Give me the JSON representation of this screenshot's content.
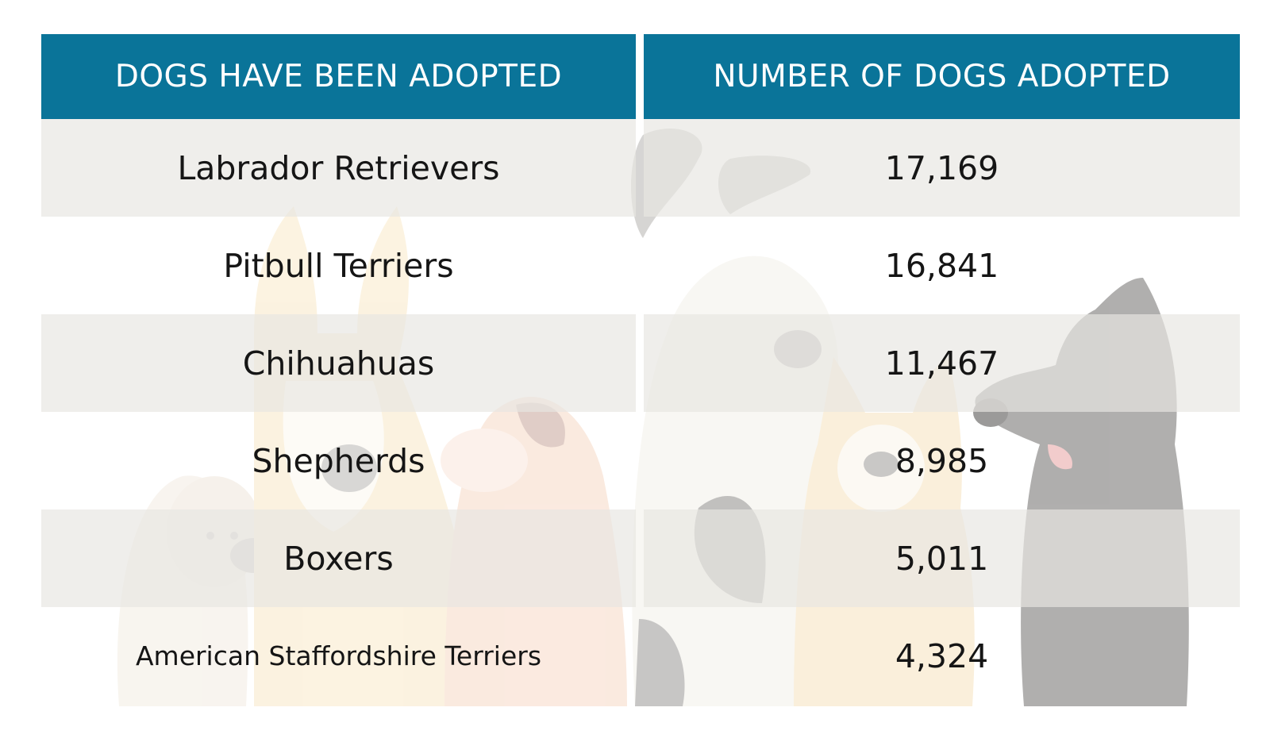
{
  "chart_data": {
    "type": "table",
    "columns": [
      "DOGS HAVE BEEN ADOPTED",
      "NUMBER OF DOGS ADOPTED"
    ],
    "rows": [
      {
        "breed": "Labrador Retrievers",
        "count_label": "17,169",
        "count": 17169
      },
      {
        "breed": "Pitbull Terriers",
        "count_label": "16,841",
        "count": 16841
      },
      {
        "breed": "Chihuahuas",
        "count_label": "11,467",
        "count": 11467
      },
      {
        "breed": "Shepherds",
        "count_label": "8,985",
        "count": 8985
      },
      {
        "breed": "Boxers",
        "count_label": "5,011",
        "count": 5011
      },
      {
        "breed": "American Staffordshire Terriers",
        "count_label": "4,324",
        "count": 4324
      }
    ]
  },
  "colors": {
    "header_bg": "#0a7499",
    "header_text": "#ffffff",
    "shaded_row": "#ecebe7",
    "cell_text": "#151515"
  },
  "background": {
    "illustration": "faded-dogs-illustration"
  }
}
